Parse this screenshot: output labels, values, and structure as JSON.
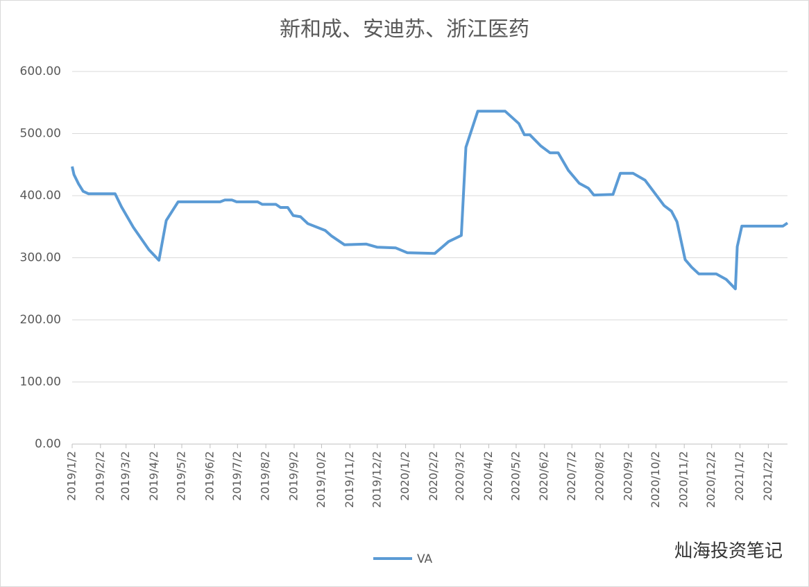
{
  "chart_data": {
    "type": "line",
    "title": "新和成、安迪苏、浙江医药",
    "watermark": "灿海投资笔记",
    "x": [
      "2019/1/2",
      "2019/1/4",
      "2019/1/9",
      "2019/1/14",
      "2019/1/20",
      "2019/2/18",
      "2019/2/25",
      "2019/3/10",
      "2019/3/27",
      "2019/4/7",
      "2019/4/15",
      "2019/4/28",
      "2019/6/13",
      "2019/6/18",
      "2019/6/26",
      "2019/7/1",
      "2019/7/24",
      "2019/7/29",
      "2019/8/13",
      "2019/8/18",
      "2019/8/26",
      "2019/9/1",
      "2019/9/9",
      "2019/9/17",
      "2019/10/6",
      "2019/10/13",
      "2019/10/27",
      "2019/11/20",
      "2019/12/2",
      "2019/12/22",
      "2020/1/4",
      "2020/2/3",
      "2020/2/18",
      "2020/3/3",
      "2020/3/8",
      "2020/3/21",
      "2020/4/20",
      "2020/5/5",
      "2020/5/11",
      "2020/5/17",
      "2020/5/29",
      "2020/6/8",
      "2020/6/17",
      "2020/6/28",
      "2020/7/10",
      "2020/7/20",
      "2020/7/26",
      "2020/8/16",
      "2020/8/24",
      "2020/9/7",
      "2020/9/20",
      "2020/10/11",
      "2020/10/19",
      "2020/10/25",
      "2020/11/3",
      "2020/11/10",
      "2020/11/18",
      "2020/12/7",
      "2020/12/18",
      "2020/12/28",
      "2020/12/30",
      "2021/1/4",
      "2021/2/18",
      "2021/2/23"
    ],
    "series": [
      {
        "name": "VA",
        "color": "#5b9bd5",
        "values": [
          447,
          434,
          419,
          407,
          403,
          403,
          382,
          349,
          313,
          296,
          360,
          390,
          390,
          393,
          393,
          390,
          390,
          386,
          386,
          381,
          381,
          368,
          366,
          355,
          344,
          335,
          321,
          322,
          317,
          316,
          308,
          307,
          326,
          336,
          478,
          536,
          536,
          516,
          498,
          498,
          480,
          469,
          469,
          441,
          420,
          412,
          401,
          402,
          436,
          436,
          425,
          384,
          375,
          358,
          297,
          285,
          274,
          274,
          265,
          250,
          318,
          351,
          351,
          356
        ]
      }
    ],
    "xlim": [
      "2019/1/2",
      "2021/2/23"
    ],
    "xticks": [
      "2019/1/2",
      "2019/2/2",
      "2019/3/2",
      "2019/4/2",
      "2019/5/2",
      "2019/6/2",
      "2019/7/2",
      "2019/8/2",
      "2019/9/2",
      "2019/10/2",
      "2019/11/2",
      "2019/12/2",
      "2020/1/2",
      "2020/2/2",
      "2020/3/2",
      "2020/4/2",
      "2020/5/2",
      "2020/6/2",
      "2020/7/2",
      "2020/8/2",
      "2020/9/2",
      "2020/10/2",
      "2020/11/2",
      "2020/12/2",
      "2021/1/2",
      "2021/2/2"
    ],
    "ylim": [
      0,
      600
    ],
    "yticks": [
      {
        "value": 0,
        "label": "0.00"
      },
      {
        "value": 100,
        "label": "100.00"
      },
      {
        "value": 200,
        "label": "200.00"
      },
      {
        "value": 300,
        "label": "300.00"
      },
      {
        "value": 400,
        "label": "400.00"
      },
      {
        "value": 500,
        "label": "500.00"
      },
      {
        "value": 600,
        "label": "600.00"
      }
    ],
    "grid": true,
    "legend": "bottom"
  }
}
